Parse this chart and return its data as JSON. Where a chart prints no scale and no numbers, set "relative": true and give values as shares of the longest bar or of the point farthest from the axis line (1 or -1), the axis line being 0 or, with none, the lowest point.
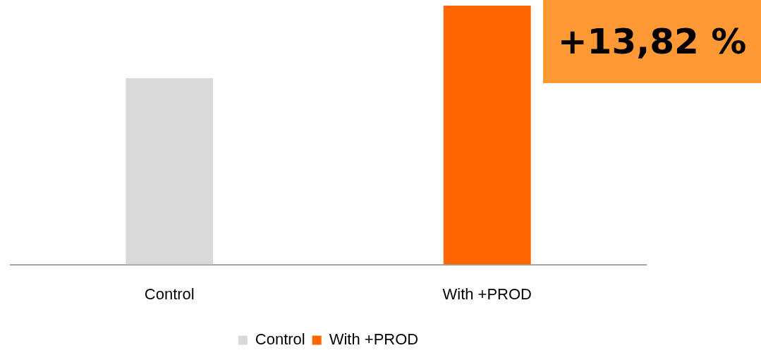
{
  "chart_data": {
    "type": "bar",
    "relative": true,
    "categories": [
      "Control",
      "With +PROD"
    ],
    "series": [
      {
        "name": "Control",
        "color": "#d9d9d9",
        "values": [
          0.72,
          null
        ]
      },
      {
        "name": "With +PROD",
        "color": "#ff6600",
        "values": [
          null,
          1
        ]
      }
    ],
    "legend": "bottom",
    "grid": false,
    "annotations": [
      "+13,82 %"
    ]
  }
}
